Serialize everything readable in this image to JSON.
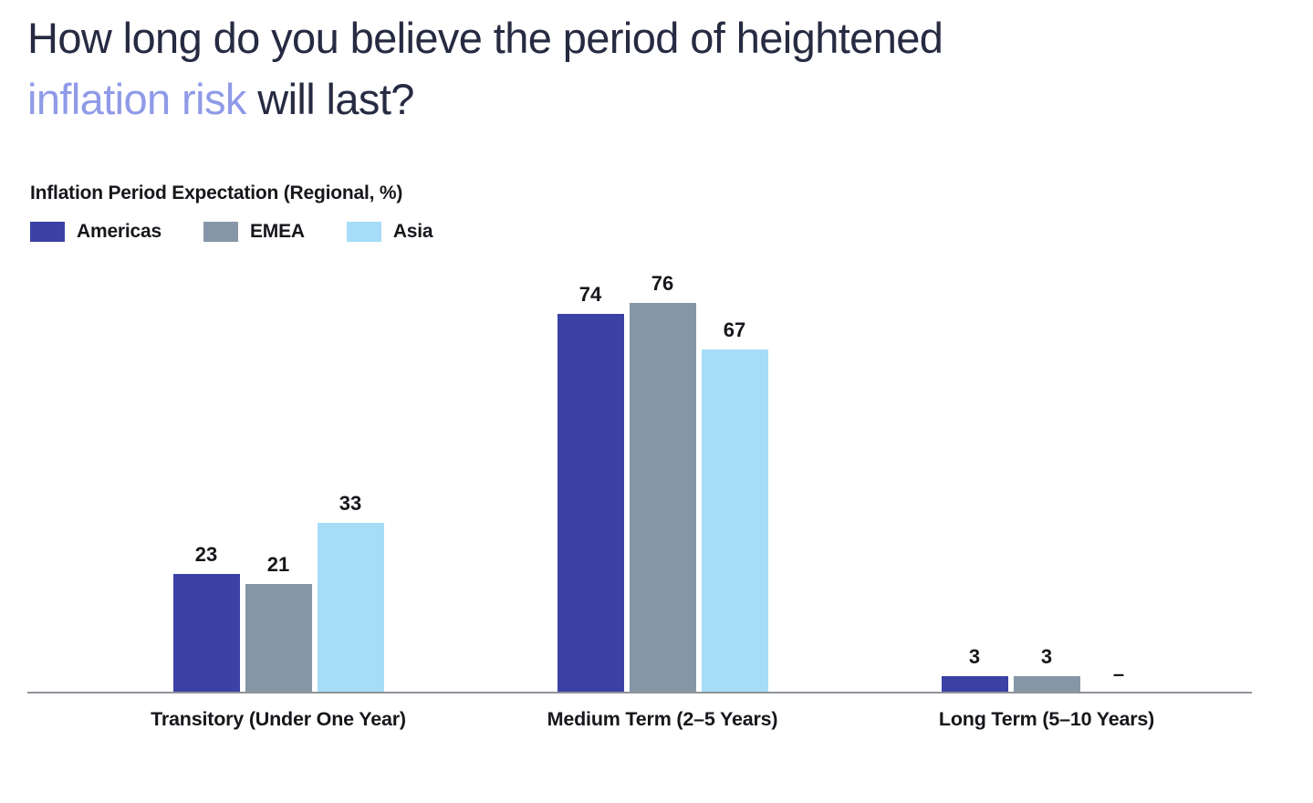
{
  "title": {
    "line1": "How long do you believe the period of heightened",
    "highlight": "inflation risk",
    "rest": " will last?"
  },
  "chart_data": {
    "type": "bar",
    "title": "Inflation Period Expectation (Regional, %)",
    "categories": [
      "Transitory (Under One Year)",
      "Medium Term (2–5 Years)",
      "Long Term (5–10 Years)"
    ],
    "series": [
      {
        "name": "Americas",
        "color": "#3B41A5",
        "values": [
          23,
          74,
          3
        ]
      },
      {
        "name": "EMEA",
        "color": "#8596A6",
        "values": [
          21,
          76,
          3
        ]
      },
      {
        "name": "Asia",
        "color": "#A6DCF7",
        "values": [
          33,
          67,
          null
        ]
      }
    ],
    "null_marker": "–",
    "ylim": [
      0,
      100
    ],
    "grid": false,
    "legend_position": "top-left",
    "value_labels": true,
    "axis_line_color": "#8E9398",
    "label_color": "#15171B"
  },
  "colors": {
    "background": "#FFFFFF",
    "title_text": "#262B42",
    "title_highlight": "#8F9AE8"
  }
}
